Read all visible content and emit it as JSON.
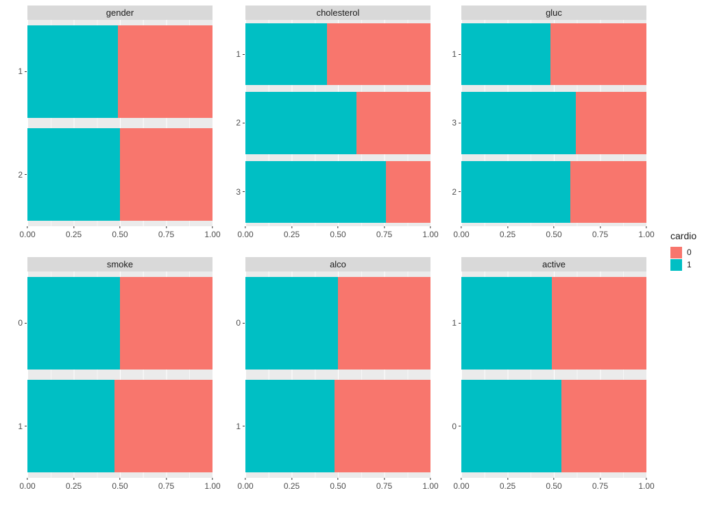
{
  "page": {
    "background": "#FFFFFF"
  },
  "legend": {
    "title": "cardio",
    "position": "right-center",
    "items": [
      {
        "label": "0",
        "color": "#F8766D"
      },
      {
        "label": "1",
        "color": "#00BFC4"
      }
    ]
  },
  "axis": {
    "x_ticks": [
      "0.00",
      "0.25",
      "0.50",
      "0.75",
      "1.00"
    ]
  },
  "theme": {
    "panel_background": "#EBEBEB",
    "strip_background": "#D9D9D9",
    "gridline_color": "#FFFFFF",
    "axis_text_color": "#4D4D4D",
    "strip_text_color": "#1A1A1A"
  },
  "chart_data": {
    "type": "bar",
    "orientation": "horizontal",
    "stacking": "fill",
    "fill_variable": "cardio",
    "x_range": [
      0,
      1
    ],
    "grid": "on",
    "colors": {
      "cardio_0": "#F8766D",
      "cardio_1": "#00BFC4"
    },
    "facets": [
      {
        "title": "gender",
        "bars": [
          {
            "label": "1",
            "cardio_1": 0.49,
            "cardio_0": 0.51
          },
          {
            "label": "2",
            "cardio_1": 0.5,
            "cardio_0": 0.5
          }
        ]
      },
      {
        "title": "cholesterol",
        "bars": [
          {
            "label": "1",
            "cardio_1": 0.44,
            "cardio_0": 0.56
          },
          {
            "label": "2",
            "cardio_1": 0.6,
            "cardio_0": 0.4
          },
          {
            "label": "3",
            "cardio_1": 0.76,
            "cardio_0": 0.24
          }
        ]
      },
      {
        "title": "gluc",
        "bars": [
          {
            "label": "1",
            "cardio_1": 0.48,
            "cardio_0": 0.52
          },
          {
            "label": "3",
            "cardio_1": 0.62,
            "cardio_0": 0.38
          },
          {
            "label": "2",
            "cardio_1": 0.59,
            "cardio_0": 0.41
          }
        ]
      },
      {
        "title": "smoke",
        "bars": [
          {
            "label": "0",
            "cardio_1": 0.5,
            "cardio_0": 0.5
          },
          {
            "label": "1",
            "cardio_1": 0.47,
            "cardio_0": 0.53
          }
        ]
      },
      {
        "title": "alco",
        "bars": [
          {
            "label": "0",
            "cardio_1": 0.5,
            "cardio_0": 0.5
          },
          {
            "label": "1",
            "cardio_1": 0.48,
            "cardio_0": 0.52
          }
        ]
      },
      {
        "title": "active",
        "bars": [
          {
            "label": "1",
            "cardio_1": 0.49,
            "cardio_0": 0.51
          },
          {
            "label": "0",
            "cardio_1": 0.54,
            "cardio_0": 0.46
          }
        ]
      }
    ]
  }
}
